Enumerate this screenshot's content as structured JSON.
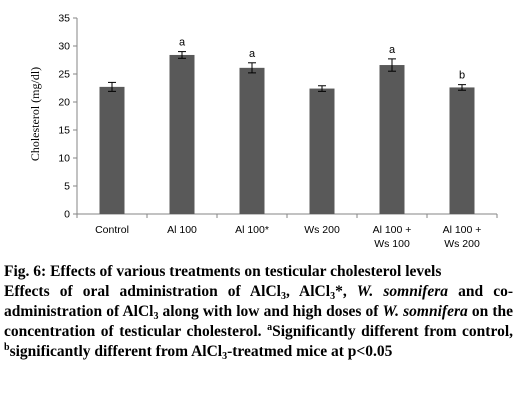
{
  "chart_data": {
    "type": "bar",
    "ylabel": "Cholesterol (mg/dl)",
    "xlabel": "",
    "ylim": [
      0,
      35
    ],
    "yticks": [
      0,
      5,
      10,
      15,
      20,
      25,
      30,
      35
    ],
    "grid": false,
    "categories": [
      [
        "Control"
      ],
      [
        "Al 100"
      ],
      [
        "Al 100*"
      ],
      [
        "Ws 200"
      ],
      [
        "Al 100 +",
        "Ws 100"
      ],
      [
        "Al 100 +",
        "Ws 200"
      ]
    ],
    "values": [
      22.7,
      28.4,
      26.1,
      22.4,
      26.6,
      22.6
    ],
    "errors": [
      0.8,
      0.6,
      0.9,
      0.5,
      1.1,
      0.5
    ],
    "annotations": [
      "",
      "a",
      "a",
      "",
      "a",
      "b"
    ],
    "bar_color": "#595959"
  },
  "caption": {
    "fig_label": "Fig. 6:",
    "fig_title": " Effects of various treatments on testicular cholesterol levels",
    "desc_part1": "Effects of oral administration of AlCl",
    "sub3": "3",
    "desc_part2": ", AlCl",
    "desc_part3": "*, ",
    "species": "W. somnifera",
    "desc_part4": " and co-administration of AlCl",
    "desc_part5": " along with low and high doses of ",
    "desc_part6": " on the concentration of testicular cholesterol. ",
    "sup_a": "a",
    "note_a": "Significantly different from control, ",
    "sup_b": "b",
    "note_b": "significantly different from AlCl",
    "note_end": "-treatmed mice at p<0.05"
  }
}
